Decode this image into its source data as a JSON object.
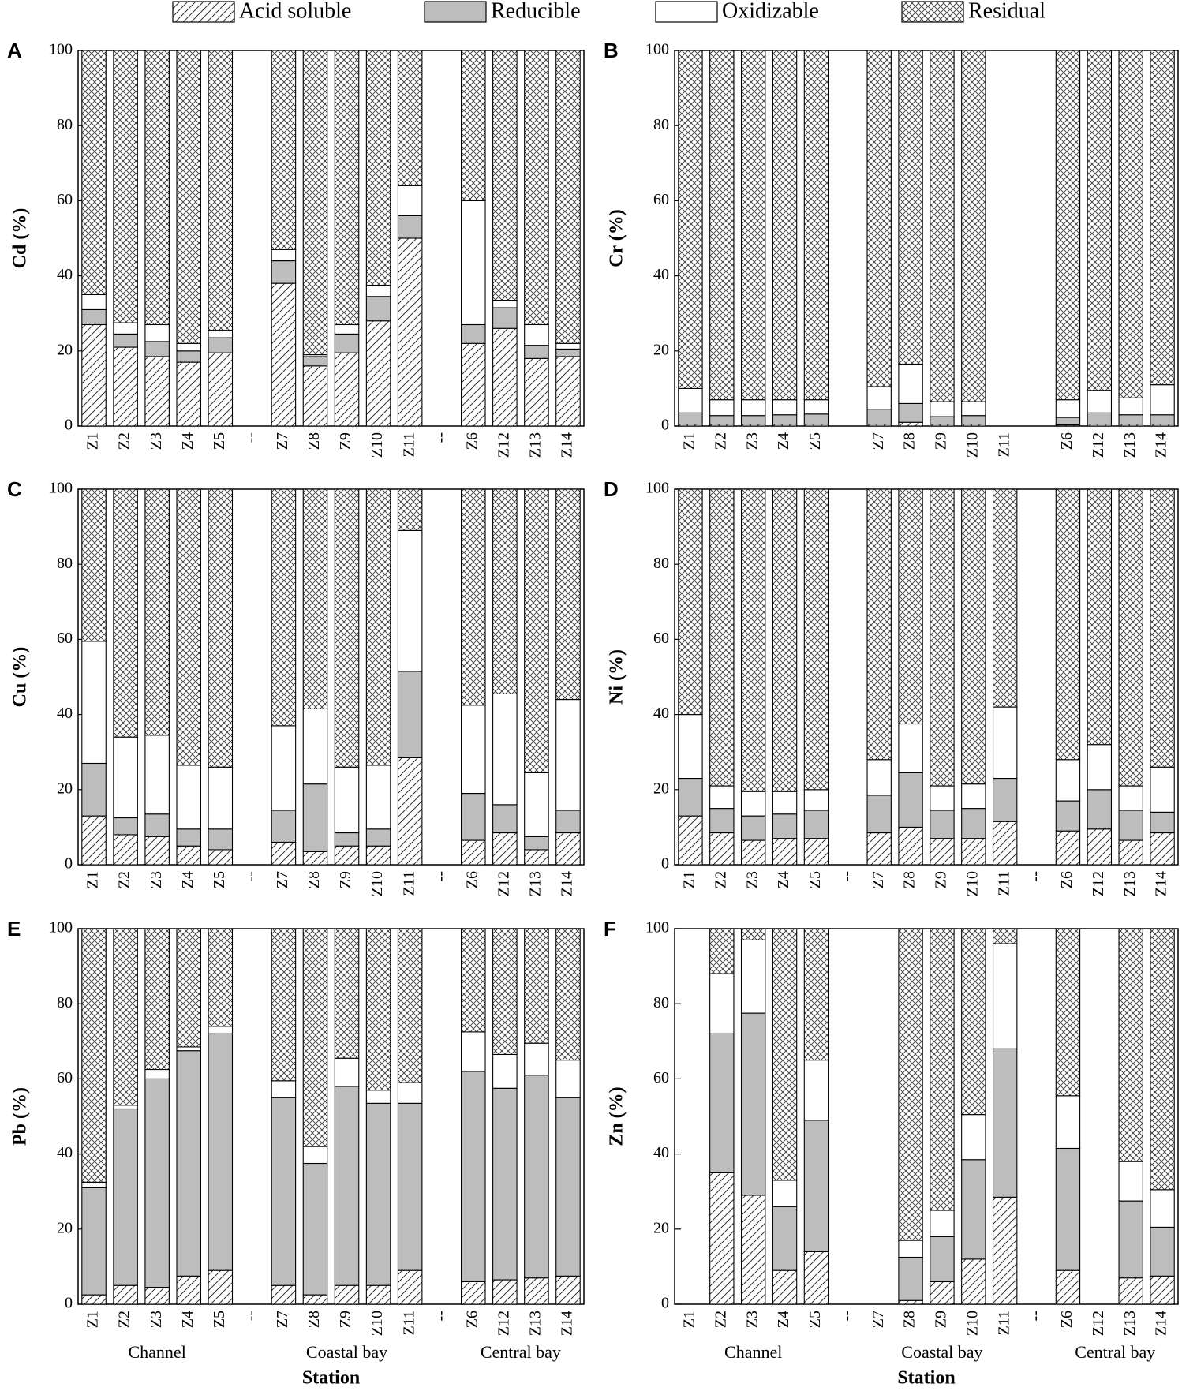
{
  "legend": {
    "position": "top",
    "names": [
      "Acid soluble",
      "Reducible",
      "Oxidizable",
      "Residual"
    ]
  },
  "chart_data": [
    {
      "type": "bar",
      "stacked": true,
      "label": "A",
      "ylabel": "Cd (%)",
      "categories": [
        "Z1",
        "Z2",
        "Z3",
        "Z4",
        "Z5",
        "--",
        "Z7",
        "Z8",
        "Z9",
        "Z10",
        "Z11",
        "--",
        "Z6",
        "Z12",
        "Z13",
        "Z14"
      ],
      "ylim": [
        0,
        100
      ],
      "yticks": [
        0,
        20,
        40,
        60,
        80,
        100
      ],
      "series": [
        {
          "pattern": "diagonal",
          "values": [
            27,
            21,
            18.5,
            17,
            19.5,
            null,
            38,
            16,
            19.5,
            28,
            50,
            null,
            22,
            26,
            18,
            18.5
          ]
        },
        {
          "pattern": "gray",
          "values": [
            4,
            3.5,
            4,
            3,
            4,
            null,
            6,
            2.5,
            5,
            6.5,
            6,
            null,
            5,
            5.5,
            3.5,
            2
          ]
        },
        {
          "pattern": "white",
          "values": [
            4,
            3,
            4.5,
            2,
            2,
            null,
            3,
            0.5,
            2.5,
            3,
            8,
            null,
            33,
            2,
            5.5,
            1.5
          ]
        },
        {
          "pattern": "crosshatch",
          "values": [
            65,
            72.5,
            73,
            78,
            74.5,
            null,
            53,
            81,
            73,
            62.5,
            36,
            null,
            40,
            66.5,
            73,
            78
          ]
        }
      ]
    },
    {
      "type": "bar",
      "stacked": true,
      "label": "B",
      "ylabel": "Cr (%)",
      "categories": [
        "Z1",
        "Z2",
        "Z3",
        "Z4",
        "Z5",
        null,
        "Z7",
        "Z8",
        "Z9",
        "Z10",
        "Z11",
        null,
        "Z6",
        "Z12",
        "Z13",
        "Z14"
      ],
      "ylim": [
        0,
        100
      ],
      "yticks": [
        0,
        20,
        40,
        60,
        80,
        100
      ],
      "series": [
        {
          "pattern": "diagonal",
          "values": [
            0.5,
            0.5,
            0.5,
            0.5,
            0.5,
            null,
            0.5,
            1,
            0.5,
            0.5,
            null,
            null,
            0.3,
            0.5,
            0.5,
            0.5
          ]
        },
        {
          "pattern": "gray",
          "values": [
            3,
            2.3,
            2.3,
            2.5,
            2.7,
            null,
            4,
            5,
            2,
            2.3,
            null,
            null,
            2,
            3,
            2.5,
            2.5
          ]
        },
        {
          "pattern": "white",
          "values": [
            6.5,
            4.2,
            4.2,
            4,
            3.8,
            null,
            6,
            10.5,
            4,
            3.7,
            null,
            null,
            4.7,
            6,
            4.5,
            8
          ]
        },
        {
          "pattern": "crosshatch",
          "values": [
            90,
            93,
            93,
            93,
            93,
            null,
            89.5,
            83.5,
            93.5,
            93.5,
            null,
            null,
            93,
            90.5,
            92.5,
            89
          ]
        }
      ]
    },
    {
      "type": "bar",
      "stacked": true,
      "label": "C",
      "ylabel": "Cu (%)",
      "categories": [
        "Z1",
        "Z2",
        "Z3",
        "Z4",
        "Z5",
        "--",
        "Z7",
        "Z8",
        "Z9",
        "Z10",
        "Z11",
        "--",
        "Z6",
        "Z12",
        "Z13",
        "Z14"
      ],
      "ylim": [
        0,
        100
      ],
      "yticks": [
        0,
        20,
        40,
        60,
        80,
        100
      ],
      "series": [
        {
          "pattern": "diagonal",
          "values": [
            13,
            8,
            7.5,
            5,
            4,
            null,
            6,
            3.5,
            5,
            5,
            28.5,
            null,
            6.5,
            8.5,
            4,
            8.5
          ]
        },
        {
          "pattern": "gray",
          "values": [
            14,
            4.5,
            6,
            4.5,
            5.5,
            null,
            8.5,
            18,
            3.5,
            4.5,
            23,
            null,
            12.5,
            7.5,
            3.5,
            6
          ]
        },
        {
          "pattern": "white",
          "values": [
            32.5,
            21.5,
            21,
            17,
            16.5,
            null,
            22.5,
            20,
            17.5,
            17,
            37.5,
            null,
            23.5,
            29.5,
            17,
            29.5
          ]
        },
        {
          "pattern": "crosshatch",
          "values": [
            40.5,
            66,
            65.5,
            73.5,
            74,
            null,
            63,
            58.5,
            74,
            73.5,
            11,
            null,
            57.5,
            54.5,
            75.5,
            56
          ]
        }
      ]
    },
    {
      "type": "bar",
      "stacked": true,
      "label": "D",
      "ylabel": "Ni (%)",
      "categories": [
        "Z1",
        "Z2",
        "Z3",
        "Z4",
        "Z5",
        "--",
        "Z7",
        "Z8",
        "Z9",
        "Z10",
        "Z11",
        "--",
        "Z6",
        "Z12",
        "Z13",
        "Z14"
      ],
      "ylim": [
        0,
        100
      ],
      "yticks": [
        0,
        20,
        40,
        60,
        80,
        100
      ],
      "series": [
        {
          "pattern": "diagonal",
          "values": [
            13,
            8.5,
            6.5,
            7,
            7,
            null,
            8.5,
            10,
            7,
            7,
            11.5,
            null,
            9,
            9.5,
            6.5,
            8.5
          ]
        },
        {
          "pattern": "gray",
          "values": [
            10,
            6.5,
            6.5,
            6.5,
            7.5,
            null,
            10,
            14.5,
            7.5,
            8,
            11.5,
            null,
            8,
            10.5,
            8,
            5.5
          ]
        },
        {
          "pattern": "white",
          "values": [
            17,
            6,
            6.5,
            6,
            5.5,
            null,
            9.5,
            13,
            6.5,
            6.5,
            19,
            null,
            11,
            12,
            6.5,
            12
          ]
        },
        {
          "pattern": "crosshatch",
          "values": [
            60,
            79,
            80.5,
            80.5,
            80,
            null,
            72,
            62.5,
            79,
            78.5,
            58,
            null,
            72,
            68,
            79,
            74
          ]
        }
      ]
    },
    {
      "type": "bar",
      "stacked": true,
      "label": "E",
      "ylabel": "Pb (%)",
      "categories": [
        "Z1",
        "Z2",
        "Z3",
        "Z4",
        "Z5",
        "--",
        "Z7",
        "Z8",
        "Z9",
        "Z10",
        "Z11",
        "--",
        "Z6",
        "Z12",
        "Z13",
        "Z14"
      ],
      "ylim": [
        0,
        100
      ],
      "yticks": [
        0,
        20,
        40,
        60,
        80,
        100
      ],
      "groups": [
        "Channel",
        "Coastal bay",
        "Central bay"
      ],
      "xlabel": "Station",
      "series": [
        {
          "pattern": "diagonal",
          "values": [
            2.5,
            5,
            4.5,
            7.5,
            9,
            null,
            5,
            2.5,
            5,
            5,
            9,
            null,
            6,
            6.5,
            7,
            7.5
          ]
        },
        {
          "pattern": "gray",
          "values": [
            28.5,
            47,
            55.5,
            60,
            63,
            null,
            50,
            35,
            53,
            48.5,
            44.5,
            null,
            56,
            51,
            54,
            47.5
          ]
        },
        {
          "pattern": "white",
          "values": [
            1.5,
            1,
            2.5,
            1,
            2,
            null,
            4.5,
            4.5,
            7.5,
            3.5,
            5.5,
            null,
            10.5,
            9,
            8.5,
            10
          ]
        },
        {
          "pattern": "crosshatch",
          "values": [
            67.5,
            47,
            37.5,
            31.5,
            26,
            null,
            40.5,
            58,
            34.5,
            43,
            41,
            null,
            27.5,
            33.5,
            30.5,
            35
          ]
        }
      ]
    },
    {
      "type": "bar",
      "stacked": true,
      "label": "F",
      "ylabel": "Zn (%)",
      "categories": [
        "Z1",
        "Z2",
        "Z3",
        "Z4",
        "Z5",
        "--",
        "Z7",
        "Z8",
        "Z9",
        "Z10",
        "Z11",
        "--",
        "Z6",
        "Z12",
        "Z13",
        "Z14"
      ],
      "ylim": [
        0,
        100
      ],
      "yticks": [
        0,
        20,
        40,
        60,
        80,
        100
      ],
      "groups": [
        "Channel",
        "Coastal bay",
        "Central bay"
      ],
      "xlabel": "Station",
      "series": [
        {
          "pattern": "diagonal",
          "values": [
            null,
            35,
            29,
            9,
            14,
            null,
            null,
            1,
            6,
            12,
            28.5,
            null,
            9,
            null,
            7,
            7.5
          ]
        },
        {
          "pattern": "gray",
          "values": [
            null,
            37,
            48.5,
            17,
            35,
            null,
            null,
            11.5,
            12,
            26.5,
            39.5,
            null,
            32.5,
            null,
            20.5,
            13
          ]
        },
        {
          "pattern": "white",
          "values": [
            null,
            16,
            19.5,
            7,
            16,
            null,
            null,
            4.5,
            7,
            12,
            28,
            null,
            14,
            null,
            10.5,
            10
          ]
        },
        {
          "pattern": "crosshatch",
          "values": [
            null,
            12,
            3,
            67,
            35,
            null,
            null,
            83,
            75,
            49.5,
            4,
            null,
            44.5,
            null,
            62,
            69.5
          ]
        }
      ]
    }
  ]
}
